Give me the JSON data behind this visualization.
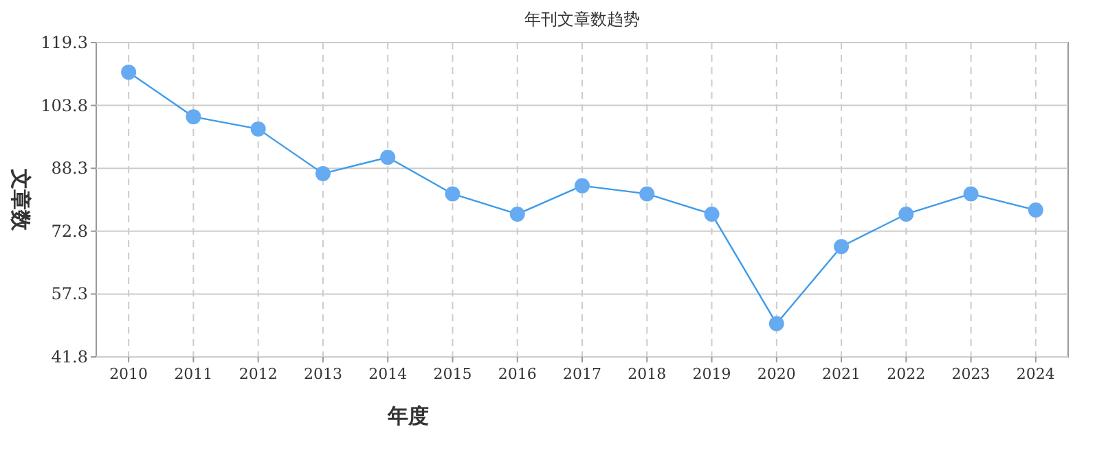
{
  "chart_data": {
    "type": "line",
    "title": "年刊文章数趋势",
    "xlabel": "年度",
    "ylabel": "文章数",
    "categories": [
      "2010",
      "2011",
      "2012",
      "2013",
      "2014",
      "2015",
      "2016",
      "2017",
      "2018",
      "2019",
      "2020",
      "2021",
      "2022",
      "2023",
      "2024"
    ],
    "series": [
      {
        "color": "#3d9be9",
        "values": [
          112,
          101,
          98,
          87,
          91,
          82,
          77,
          84,
          82,
          77,
          50,
          69,
          77,
          82,
          78
        ]
      }
    ],
    "ylim": [
      41.8,
      119.3
    ],
    "yticks": [
      41.8,
      57.3,
      72.8,
      88.3,
      103.8,
      119.3
    ],
    "grid": true,
    "marker": "circle",
    "line_style": "solid"
  }
}
